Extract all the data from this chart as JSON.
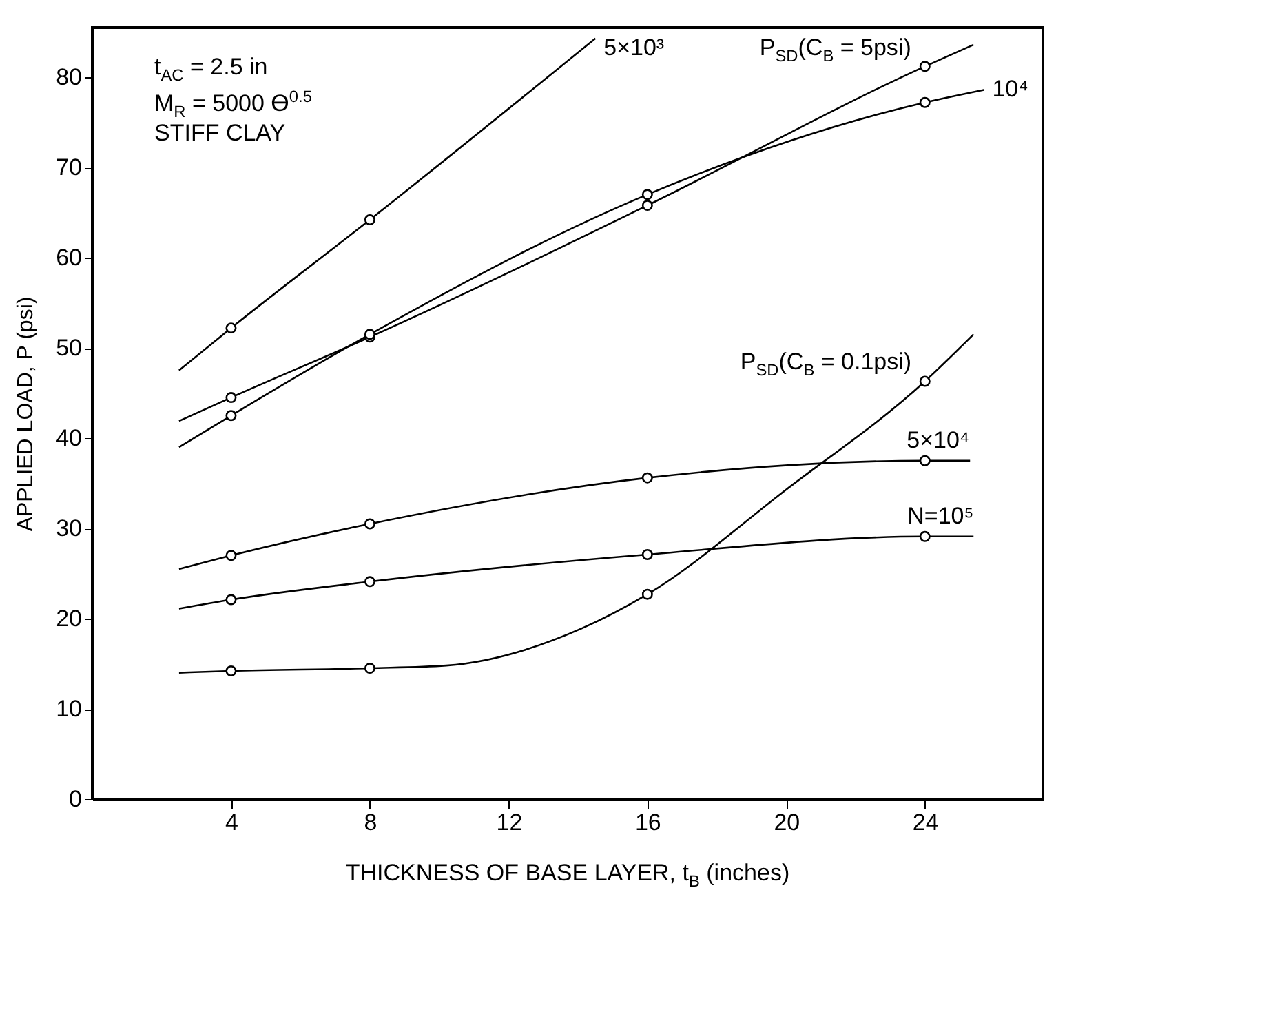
{
  "chart_data": {
    "type": "line",
    "xlabel": "THICKNESS OF BASE LAYER, t$_{B}$ (inches)",
    "ylabel": "APPLIED LOAD, P (psi)",
    "annotations": [
      "t$_{AC}$ = 2.5 in",
      "M$_{R}$ = 5000 ϴ$^{0.5}$",
      "STIFF CLAY"
    ],
    "xlim": [
      0,
      27.4
    ],
    "xticks": [
      4,
      8,
      12,
      16,
      20,
      24
    ],
    "ylim": [
      0,
      85.5
    ],
    "yticks": [
      0,
      10,
      20,
      30,
      40,
      50,
      60,
      70,
      80
    ],
    "series": [
      {
        "name": "5×10³",
        "color": "#000000",
        "type": "line",
        "marker": "none",
        "x": [
          2.5,
          4,
          8,
          14.5
        ],
        "values": [
          47.5,
          52.2,
          64.2,
          84.3
        ]
      },
      {
        "name": "P$_{SD}$(C$_{B}$ = 5psi)",
        "color": "#000000",
        "type": "line",
        "marker": "none",
        "x": [
          2.5,
          4,
          8,
          16,
          24,
          25.4
        ],
        "values": [
          41.9,
          44.5,
          51.2,
          65.8,
          81.2,
          83.6
        ]
      },
      {
        "name": "10⁴",
        "color": "#000000",
        "type": "line",
        "marker": "none",
        "x": [
          2.5,
          4,
          8,
          16,
          24,
          25.7
        ],
        "values": [
          39,
          42.5,
          51.5,
          67,
          77.2,
          78.6
        ]
      },
      {
        "name": "5×10⁴",
        "color": "#000000",
        "type": "line",
        "marker": "none",
        "x": [
          2.5,
          4,
          8,
          16,
          24,
          25.3
        ],
        "values": [
          25.5,
          27,
          30.5,
          35.6,
          37.5,
          37.5
        ]
      },
      {
        "name": "N=10⁵",
        "color": "#000000",
        "type": "line",
        "marker": "none",
        "x": [
          2.5,
          4,
          8,
          16,
          24,
          25.4
        ],
        "values": [
          21.1,
          22.1,
          24.1,
          27.1,
          29.1,
          29.1
        ]
      },
      {
        "name": "P$_{SD}$(C$_{B}$ = 0.1psi)",
        "color": "#000000",
        "type": "line",
        "marker": "none",
        "x": [
          2.5,
          4,
          8,
          10.2,
          14.1,
          16,
          20,
          24,
          25.4
        ],
        "values": [
          14,
          14.2,
          14.5,
          14.8,
          18.9,
          22.7,
          34.3,
          46.3,
          51.5
        ]
      },
      {
        "color": "#000000",
        "type": "scatter",
        "marker": "circle",
        "x": [
          4,
          8,
          16,
          24,
          4,
          8,
          16,
          24
        ],
        "values": [
          44.5,
          51.2,
          65.8,
          81.2,
          14.2,
          14.5,
          22.7,
          46.3
        ]
      },
      {
        "color": "#000000",
        "type": "scatter",
        "marker": "circle",
        "x": [
          4,
          8,
          4,
          8,
          16,
          24,
          4,
          8,
          16,
          24,
          4,
          8,
          16,
          24
        ],
        "values": [
          52.2,
          64.2,
          42.5,
          51.5,
          67,
          77.2,
          27,
          30.5,
          35.6,
          37.5,
          22.1,
          24.1,
          27.1,
          29.1
        ]
      }
    ]
  }
}
